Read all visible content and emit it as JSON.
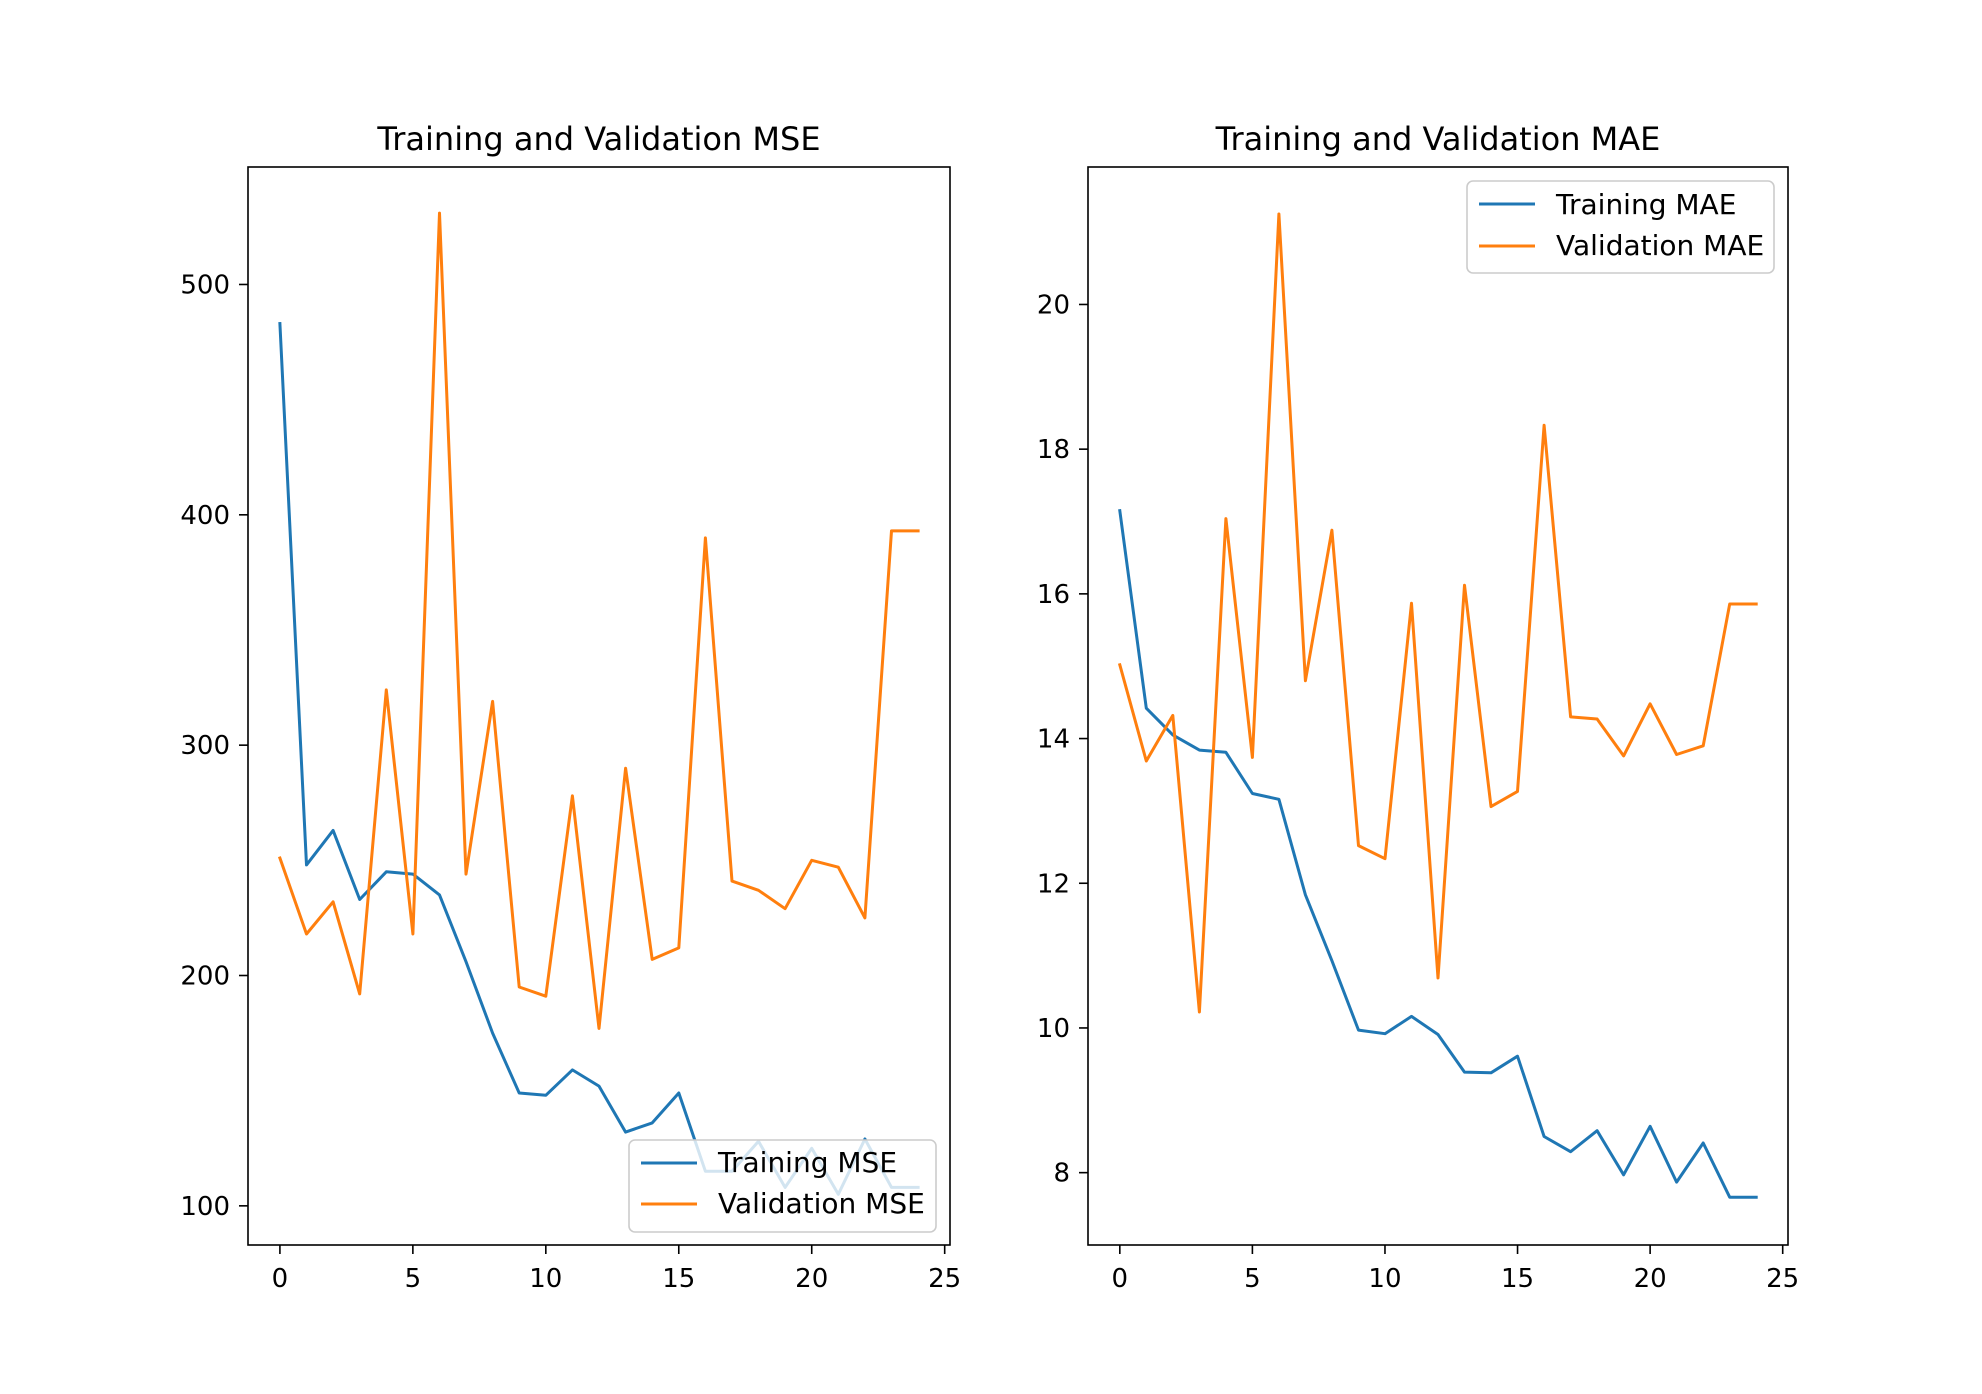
{
  "figure": {
    "colors": {
      "training": "#1f77b4",
      "validation": "#ff7f0e"
    }
  },
  "chart_data": [
    {
      "type": "line",
      "title": "Training and Validation MSE",
      "xlabel": "",
      "ylabel": "",
      "xlim": [
        -1.2,
        25.2
      ],
      "ylim": [
        83,
        551
      ],
      "x": [
        0,
        1,
        2,
        3,
        4,
        5,
        6,
        7,
        8,
        9,
        10,
        11,
        12,
        13,
        14,
        15,
        16,
        17,
        18,
        19,
        20,
        21,
        22,
        23,
        24
      ],
      "xticks": [
        0,
        5,
        10,
        15,
        20,
        25
      ],
      "xtick_labels": [
        "0",
        "5",
        "10",
        "15",
        "20",
        "25"
      ],
      "yticks": [
        100,
        200,
        300,
        400,
        500
      ],
      "ytick_labels": [
        "100",
        "200",
        "300",
        "400",
        "500"
      ],
      "grid": false,
      "legend_position": "lower right",
      "series": [
        {
          "name": "Training MSE",
          "color": "#1f77b4",
          "values": [
            483,
            248,
            263,
            233,
            245,
            244,
            235,
            206,
            175,
            149,
            148,
            159,
            152,
            132,
            136,
            149,
            115,
            115,
            128,
            108,
            125,
            105,
            129,
            108,
            108
          ]
        },
        {
          "name": "Validation MSE",
          "color": "#ff7f0e",
          "values": [
            251,
            218,
            232,
            192,
            324,
            218,
            531,
            244,
            319,
            195,
            191,
            278,
            177,
            290,
            207,
            212,
            390,
            241,
            237,
            229,
            250,
            247,
            225,
            393,
            393
          ]
        }
      ]
    },
    {
      "type": "line",
      "title": "Training and Validation MAE",
      "xlabel": "",
      "ylabel": "",
      "xlim": [
        -1.2,
        25.2
      ],
      "ylim": [
        7.0,
        21.9
      ],
      "x": [
        0,
        1,
        2,
        3,
        4,
        5,
        6,
        7,
        8,
        9,
        10,
        11,
        12,
        13,
        14,
        15,
        16,
        17,
        18,
        19,
        20,
        21,
        22,
        23,
        24
      ],
      "xticks": [
        0,
        5,
        10,
        15,
        20,
        25
      ],
      "xtick_labels": [
        "0",
        "5",
        "10",
        "15",
        "20",
        "25"
      ],
      "yticks": [
        8,
        10,
        12,
        14,
        16,
        18,
        20
      ],
      "ytick_labels": [
        "8",
        "10",
        "12",
        "14",
        "16",
        "18",
        "20"
      ],
      "grid": false,
      "legend_position": "upper right",
      "series": [
        {
          "name": "Training MAE",
          "color": "#1f77b4",
          "values": [
            17.15,
            14.42,
            14.05,
            13.84,
            13.81,
            13.24,
            13.16,
            11.84,
            10.93,
            9.97,
            9.92,
            10.16,
            9.91,
            9.39,
            9.38,
            9.61,
            8.5,
            8.29,
            8.58,
            7.97,
            8.64,
            7.87,
            8.41,
            7.66,
            7.66
          ]
        },
        {
          "name": "Validation MAE",
          "color": "#ff7f0e",
          "values": [
            15.02,
            13.69,
            14.32,
            10.22,
            17.04,
            13.74,
            21.25,
            14.8,
            16.88,
            12.52,
            12.34,
            15.87,
            10.69,
            16.12,
            13.06,
            13.27,
            18.33,
            14.3,
            14.27,
            13.76,
            14.48,
            13.78,
            13.9,
            15.86,
            15.86
          ]
        }
      ]
    }
  ]
}
